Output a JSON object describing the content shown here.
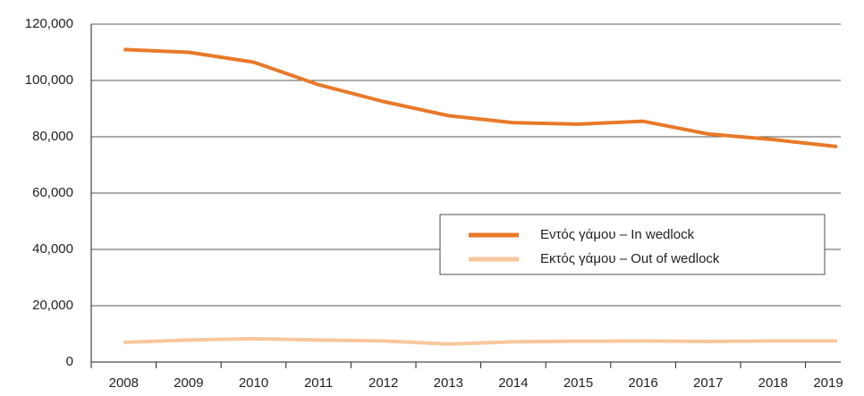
{
  "chart_data": {
    "type": "line",
    "categories": [
      "2008",
      "2009",
      "2010",
      "2011",
      "2012",
      "2013",
      "2014",
      "2015",
      "2016",
      "2017",
      "2018",
      "2019"
    ],
    "series": [
      {
        "name": "Εντός γάμου – In wedlock",
        "color": "#e8792a",
        "values": [
          111000,
          110000,
          106500,
          98500,
          92500,
          87500,
          85000,
          84500,
          85500,
          81000,
          79000,
          76500
        ]
      },
      {
        "name": "Εκτός γάμου – Out of wedlock",
        "color": "#f8c79c",
        "values": [
          7000,
          7800,
          8300,
          7800,
          7500,
          6400,
          7200,
          7400,
          7500,
          7300,
          7500,
          7500
        ]
      }
    ],
    "ylim": [
      0,
      120000
    ],
    "yticks": [
      0,
      {
        "value": 20000,
        "label": "20,000"
      },
      {
        "value": 40000,
        "label": "40,000"
      },
      {
        "value": 60000,
        "label": "60,000"
      },
      {
        "value": 80000,
        "label": "80,000"
      },
      {
        "value": 100000,
        "label": "100,000"
      },
      {
        "value": 120000,
        "label": "120,000"
      }
    ],
    "grid": true
  }
}
